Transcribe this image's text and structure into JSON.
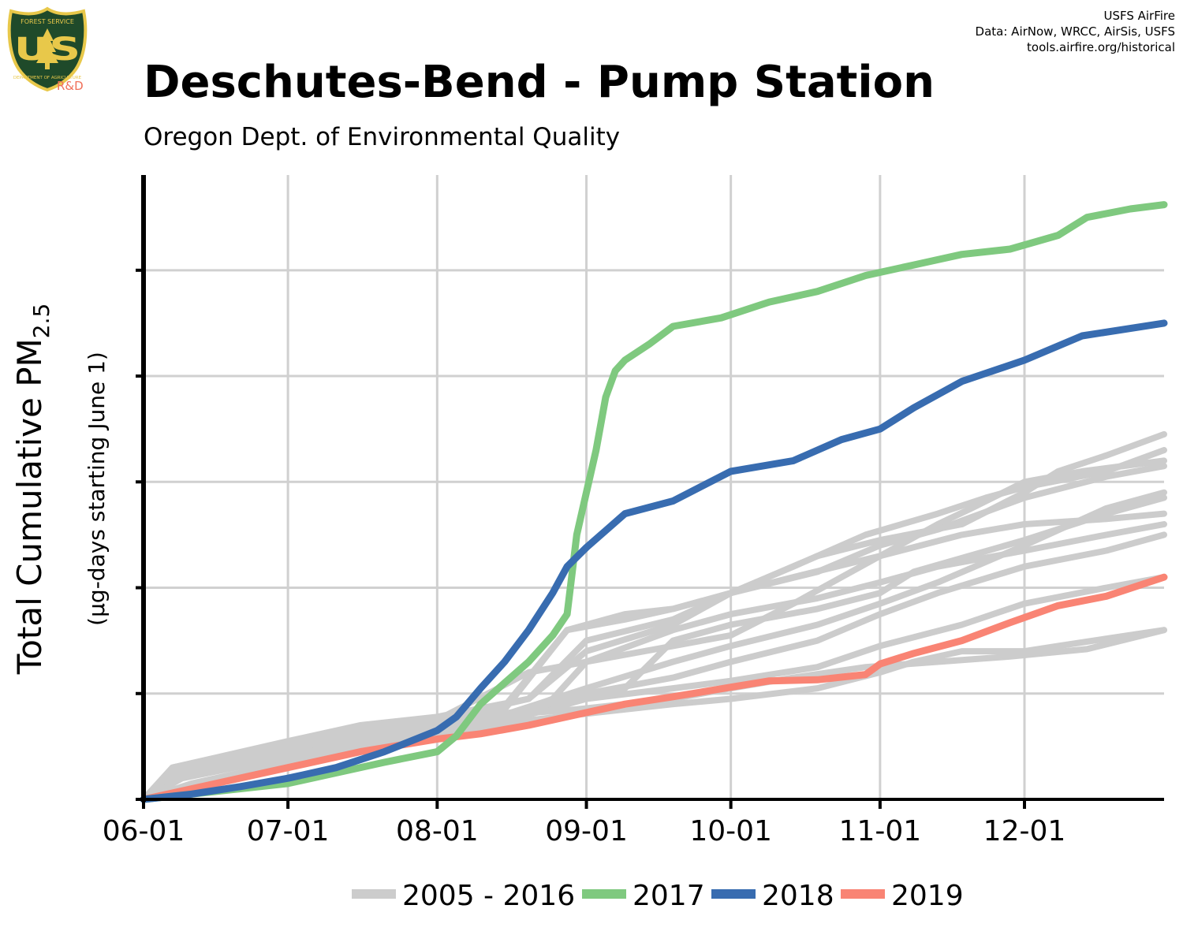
{
  "header": {
    "logo_top": "FOREST SERVICE",
    "logo_main": "US",
    "logo_bottom": "DEPARTMENT OF AGRICULTURE",
    "logo_tag": "R&D",
    "credits": [
      "USFS AirFire",
      "Data: AirNow, WRCC, AirSis, USFS",
      "tools.airfire.org/historical"
    ]
  },
  "colors": {
    "historical": "#cccccc",
    "y2017": "#7fc97f",
    "y2018": "#386cb0",
    "y2019": "#f98474",
    "grid": "#d0d0d0",
    "axis": "#000000",
    "logo_shield": "#1f4a2a",
    "logo_gold": "#e8c84a"
  },
  "chart_data": {
    "type": "line",
    "title": "Deschutes-Bend - Pump Station",
    "subtitle": "Oregon Dept. of Environmental Quality",
    "ylabel": "Total Cumulative PM",
    "ylabel_sub": "2.5",
    "ylabel2": "(µg-days starting June 1)",
    "x_ticks": [
      "06-01",
      "07-01",
      "08-01",
      "09-01",
      "10-01",
      "11-01",
      "12-01"
    ],
    "x_tick_days": [
      0,
      30,
      61,
      92,
      122,
      153,
      183
    ],
    "xlim": [
      0,
      212
    ],
    "ylim": [
      0,
      5.9
    ],
    "y_ticks": [
      0,
      1,
      2,
      3,
      4,
      5
    ],
    "y_tick_labels_shown": false,
    "grid": true,
    "legend_position": "bottom",
    "legend": [
      {
        "label": "2005 - 2016",
        "color": "#cccccc"
      },
      {
        "label": "2017",
        "color": "#7fc97f"
      },
      {
        "label": "2018",
        "color": "#386cb0"
      },
      {
        "label": "2019",
        "color": "#f98474"
      }
    ],
    "series": [
      {
        "name": "2005 - 2016",
        "group": "historical",
        "points": [
          [
            0,
            0
          ],
          [
            5,
            0.2
          ],
          [
            15,
            0.3
          ],
          [
            30,
            0.45
          ],
          [
            45,
            0.6
          ],
          [
            61,
            0.72
          ],
          [
            75,
            0.8
          ],
          [
            90,
            0.85
          ],
          [
            100,
            0.9
          ],
          [
            110,
            0.95
          ],
          [
            122,
            1.05
          ],
          [
            135,
            1.15
          ],
          [
            150,
            1.25
          ],
          [
            165,
            1.3
          ],
          [
            180,
            1.35
          ],
          [
            196,
            1.42
          ],
          [
            212,
            1.6
          ]
        ]
      },
      {
        "name": "2005 - 2016",
        "group": "historical",
        "points": [
          [
            0,
            0
          ],
          [
            10,
            0.15
          ],
          [
            30,
            0.35
          ],
          [
            61,
            0.6
          ],
          [
            75,
            0.72
          ],
          [
            90,
            0.8
          ],
          [
            110,
            0.9
          ],
          [
            122,
            0.95
          ],
          [
            140,
            1.05
          ],
          [
            153,
            1.2
          ],
          [
            160,
            1.3
          ],
          [
            170,
            1.4
          ],
          [
            183,
            1.4
          ],
          [
            190,
            1.45
          ],
          [
            212,
            1.6
          ]
        ]
      },
      {
        "name": "2005 - 2016",
        "group": "historical",
        "points": [
          [
            0,
            0
          ],
          [
            8,
            0.2
          ],
          [
            30,
            0.4
          ],
          [
            61,
            0.65
          ],
          [
            80,
            0.8
          ],
          [
            92,
            0.95
          ],
          [
            110,
            1.05
          ],
          [
            122,
            1.12
          ],
          [
            140,
            1.25
          ],
          [
            153,
            1.45
          ],
          [
            170,
            1.65
          ],
          [
            183,
            1.85
          ],
          [
            200,
            2.0
          ],
          [
            212,
            2.1
          ]
        ]
      },
      {
        "name": "2005 - 2016",
        "group": "historical",
        "points": [
          [
            0,
            0
          ],
          [
            6,
            0.22
          ],
          [
            30,
            0.42
          ],
          [
            50,
            0.6
          ],
          [
            61,
            0.68
          ],
          [
            80,
            0.85
          ],
          [
            92,
            1.0
          ],
          [
            110,
            1.15
          ],
          [
            122,
            1.3
          ],
          [
            140,
            1.5
          ],
          [
            153,
            1.75
          ],
          [
            165,
            1.95
          ],
          [
            183,
            2.2
          ],
          [
            200,
            2.35
          ],
          [
            212,
            2.5
          ]
        ]
      },
      {
        "name": "2005 - 2016",
        "group": "historical",
        "points": [
          [
            0,
            0
          ],
          [
            7,
            0.2
          ],
          [
            30,
            0.4
          ],
          [
            61,
            0.6
          ],
          [
            75,
            0.78
          ],
          [
            85,
            0.95
          ],
          [
            92,
            1.3
          ],
          [
            110,
            1.6
          ],
          [
            122,
            1.75
          ],
          [
            140,
            1.9
          ],
          [
            153,
            2.05
          ],
          [
            165,
            2.2
          ],
          [
            183,
            2.35
          ],
          [
            200,
            2.5
          ],
          [
            212,
            2.6
          ]
        ]
      },
      {
        "name": "2005 - 2016",
        "group": "historical",
        "points": [
          [
            0,
            0
          ],
          [
            6,
            0.25
          ],
          [
            30,
            0.5
          ],
          [
            45,
            0.65
          ],
          [
            61,
            0.75
          ],
          [
            75,
            0.88
          ],
          [
            88,
            1.6
          ],
          [
            100,
            1.7
          ],
          [
            110,
            1.8
          ],
          [
            122,
            1.95
          ],
          [
            135,
            2.1
          ],
          [
            153,
            2.3
          ],
          [
            170,
            2.5
          ],
          [
            183,
            2.6
          ],
          [
            200,
            2.65
          ],
          [
            212,
            2.7
          ]
        ]
      },
      {
        "name": "2005 - 2016",
        "group": "historical",
        "points": [
          [
            0,
            0
          ],
          [
            6,
            0.25
          ],
          [
            30,
            0.45
          ],
          [
            61,
            0.7
          ],
          [
            80,
            0.85
          ],
          [
            92,
            1.0
          ],
          [
            100,
            1.05
          ],
          [
            110,
            1.5
          ],
          [
            122,
            1.65
          ],
          [
            140,
            1.8
          ],
          [
            153,
            1.95
          ],
          [
            160,
            2.15
          ],
          [
            183,
            2.45
          ],
          [
            200,
            2.7
          ],
          [
            212,
            2.85
          ]
        ]
      },
      {
        "name": "2005 - 2016",
        "group": "historical",
        "points": [
          [
            0,
            0
          ],
          [
            5,
            0.22
          ],
          [
            30,
            0.42
          ],
          [
            61,
            0.65
          ],
          [
            75,
            0.8
          ],
          [
            92,
            1.05
          ],
          [
            110,
            1.3
          ],
          [
            122,
            1.45
          ],
          [
            140,
            1.65
          ],
          [
            153,
            1.85
          ],
          [
            165,
            2.05
          ],
          [
            183,
            2.4
          ],
          [
            200,
            2.75
          ],
          [
            212,
            2.9
          ]
        ]
      },
      {
        "name": "2005 - 2016",
        "group": "historical",
        "points": [
          [
            0,
            0
          ],
          [
            6,
            0.25
          ],
          [
            30,
            0.5
          ],
          [
            50,
            0.7
          ],
          [
            61,
            0.75
          ],
          [
            80,
            1.2
          ],
          [
            92,
            1.3
          ],
          [
            110,
            1.45
          ],
          [
            122,
            1.55
          ],
          [
            135,
            1.85
          ],
          [
            153,
            2.3
          ],
          [
            165,
            2.6
          ],
          [
            172,
            2.75
          ],
          [
            183,
            3.0
          ],
          [
            195,
            3.1
          ],
          [
            212,
            3.2
          ]
        ]
      },
      {
        "name": "2005 - 2016",
        "group": "historical",
        "points": [
          [
            0,
            0
          ],
          [
            6,
            0.3
          ],
          [
            30,
            0.55
          ],
          [
            45,
            0.7
          ],
          [
            61,
            0.78
          ],
          [
            80,
            0.95
          ],
          [
            92,
            1.5
          ],
          [
            110,
            1.7
          ],
          [
            122,
            1.95
          ],
          [
            140,
            2.15
          ],
          [
            153,
            2.4
          ],
          [
            165,
            2.55
          ],
          [
            183,
            2.85
          ],
          [
            200,
            3.05
          ],
          [
            212,
            3.15
          ]
        ]
      },
      {
        "name": "2005 - 2016",
        "group": "historical",
        "points": [
          [
            0,
            0
          ],
          [
            6,
            0.28
          ],
          [
            30,
            0.48
          ],
          [
            61,
            0.72
          ],
          [
            75,
            0.85
          ],
          [
            88,
            1.6
          ],
          [
            100,
            1.75
          ],
          [
            110,
            1.8
          ],
          [
            122,
            1.95
          ],
          [
            135,
            2.2
          ],
          [
            150,
            2.5
          ],
          [
            165,
            2.7
          ],
          [
            175,
            2.85
          ],
          [
            183,
            2.95
          ],
          [
            200,
            3.1
          ],
          [
            212,
            3.3
          ]
        ]
      },
      {
        "name": "2005 - 2016",
        "group": "historical",
        "points": [
          [
            0,
            0
          ],
          [
            6,
            0.3
          ],
          [
            30,
            0.52
          ],
          [
            61,
            0.75
          ],
          [
            80,
            0.95
          ],
          [
            92,
            1.4
          ],
          [
            110,
            1.65
          ],
          [
            122,
            1.95
          ],
          [
            140,
            2.3
          ],
          [
            153,
            2.45
          ],
          [
            170,
            2.6
          ],
          [
            183,
            2.9
          ],
          [
            190,
            3.1
          ],
          [
            200,
            3.25
          ],
          [
            212,
            3.45
          ]
        ]
      },
      {
        "name": "2017",
        "group": "y2017",
        "points": [
          [
            0,
            0
          ],
          [
            10,
            0.05
          ],
          [
            30,
            0.15
          ],
          [
            50,
            0.35
          ],
          [
            61,
            0.45
          ],
          [
            65,
            0.6
          ],
          [
            70,
            0.9
          ],
          [
            75,
            1.1
          ],
          [
            80,
            1.3
          ],
          [
            85,
            1.55
          ],
          [
            88,
            1.75
          ],
          [
            90,
            2.5
          ],
          [
            92,
            2.9
          ],
          [
            94,
            3.3
          ],
          [
            96,
            3.8
          ],
          [
            98,
            4.05
          ],
          [
            100,
            4.15
          ],
          [
            105,
            4.3
          ],
          [
            110,
            4.47
          ],
          [
            120,
            4.55
          ],
          [
            130,
            4.7
          ],
          [
            140,
            4.8
          ],
          [
            150,
            4.95
          ],
          [
            160,
            5.05
          ],
          [
            170,
            5.15
          ],
          [
            180,
            5.2
          ],
          [
            190,
            5.33
          ],
          [
            196,
            5.5
          ],
          [
            205,
            5.58
          ],
          [
            212,
            5.62
          ]
        ]
      },
      {
        "name": "2018",
        "group": "y2018",
        "points": [
          [
            0,
            0
          ],
          [
            10,
            0.05
          ],
          [
            20,
            0.12
          ],
          [
            30,
            0.2
          ],
          [
            40,
            0.3
          ],
          [
            50,
            0.45
          ],
          [
            61,
            0.65
          ],
          [
            65,
            0.78
          ],
          [
            70,
            1.05
          ],
          [
            75,
            1.3
          ],
          [
            80,
            1.6
          ],
          [
            85,
            1.95
          ],
          [
            88,
            2.2
          ],
          [
            92,
            2.38
          ],
          [
            95,
            2.5
          ],
          [
            100,
            2.7
          ],
          [
            110,
            2.82
          ],
          [
            122,
            3.1
          ],
          [
            135,
            3.2
          ],
          [
            145,
            3.4
          ],
          [
            153,
            3.5
          ],
          [
            160,
            3.7
          ],
          [
            170,
            3.95
          ],
          [
            183,
            4.15
          ],
          [
            195,
            4.38
          ],
          [
            212,
            4.5
          ]
        ]
      },
      {
        "name": "2019",
        "group": "y2019",
        "points": [
          [
            0,
            0
          ],
          [
            15,
            0.15
          ],
          [
            30,
            0.3
          ],
          [
            45,
            0.45
          ],
          [
            61,
            0.57
          ],
          [
            70,
            0.62
          ],
          [
            80,
            0.7
          ],
          [
            92,
            0.82
          ],
          [
            100,
            0.9
          ],
          [
            110,
            0.97
          ],
          [
            122,
            1.06
          ],
          [
            130,
            1.12
          ],
          [
            140,
            1.13
          ],
          [
            150,
            1.18
          ],
          [
            153,
            1.28
          ],
          [
            160,
            1.38
          ],
          [
            170,
            1.5
          ],
          [
            180,
            1.67
          ],
          [
            190,
            1.83
          ],
          [
            200,
            1.92
          ],
          [
            212,
            2.1
          ]
        ]
      }
    ]
  }
}
